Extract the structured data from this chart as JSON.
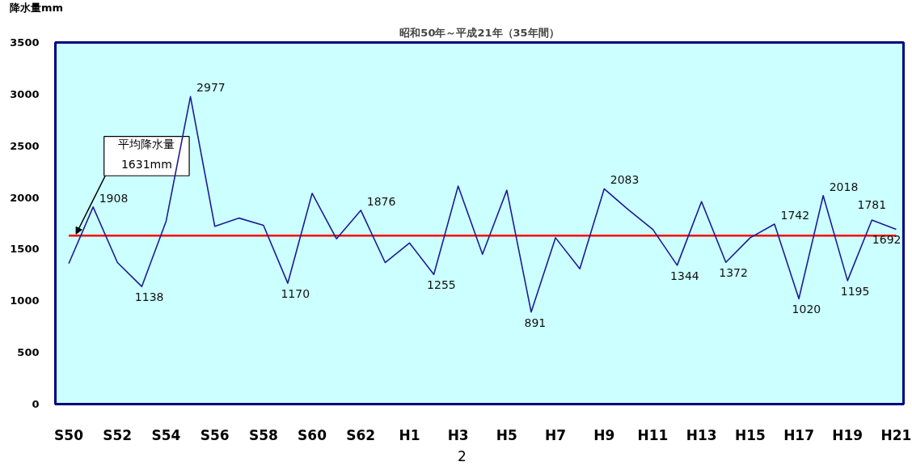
{
  "chart_data": {
    "type": "line",
    "title": "昭和50年～平成21年（35年間）",
    "ylabel": "降水量mm",
    "categories": [
      "S50",
      null,
      "S52",
      null,
      "S54",
      null,
      "S56",
      null,
      "S58",
      null,
      "S60",
      null,
      "S62",
      null,
      "H1",
      null,
      "H3",
      null,
      "H5",
      null,
      "H7",
      null,
      "H9",
      null,
      "H11",
      null,
      "H13",
      null,
      "H15",
      null,
      "H17",
      null,
      "H19",
      null,
      "H21"
    ],
    "series": [
      {
        "color": "#1c1c96",
        "values": [
          1360,
          1908,
          1370,
          1138,
          1770,
          2977,
          1720,
          1800,
          1730,
          1170,
          2040,
          1600,
          1876,
          1370,
          1560,
          1255,
          2110,
          1450,
          2070,
          891,
          1610,
          1310,
          2083,
          1880,
          1690,
          1344,
          1960,
          1372,
          1610,
          1742,
          1020,
          2018,
          1195,
          1781,
          1692
        ],
        "value_labels": [
          null,
          "1908",
          null,
          "1138",
          null,
          "2977",
          null,
          null,
          null,
          "1170",
          null,
          null,
          "1876",
          null,
          null,
          "1255",
          null,
          null,
          null,
          "891",
          null,
          null,
          "2083",
          null,
          null,
          "1344",
          null,
          "1372",
          null,
          "1742",
          "1020",
          "2018",
          "1195",
          "1781",
          "1692"
        ]
      }
    ],
    "ylim": [
      0,
      3500
    ],
    "yticks": [
      0,
      500,
      1000,
      1500,
      2000,
      2500,
      3000,
      3500
    ],
    "grid": false,
    "marker": "none",
    "line_style": "solid",
    "ref_lines": [
      {
        "axis": "y",
        "value": 1631,
        "label": "平均降水量\n1631mm",
        "color": "#ff0000",
        "line_style": "solid"
      }
    ],
    "annotations": [
      "2"
    ]
  }
}
